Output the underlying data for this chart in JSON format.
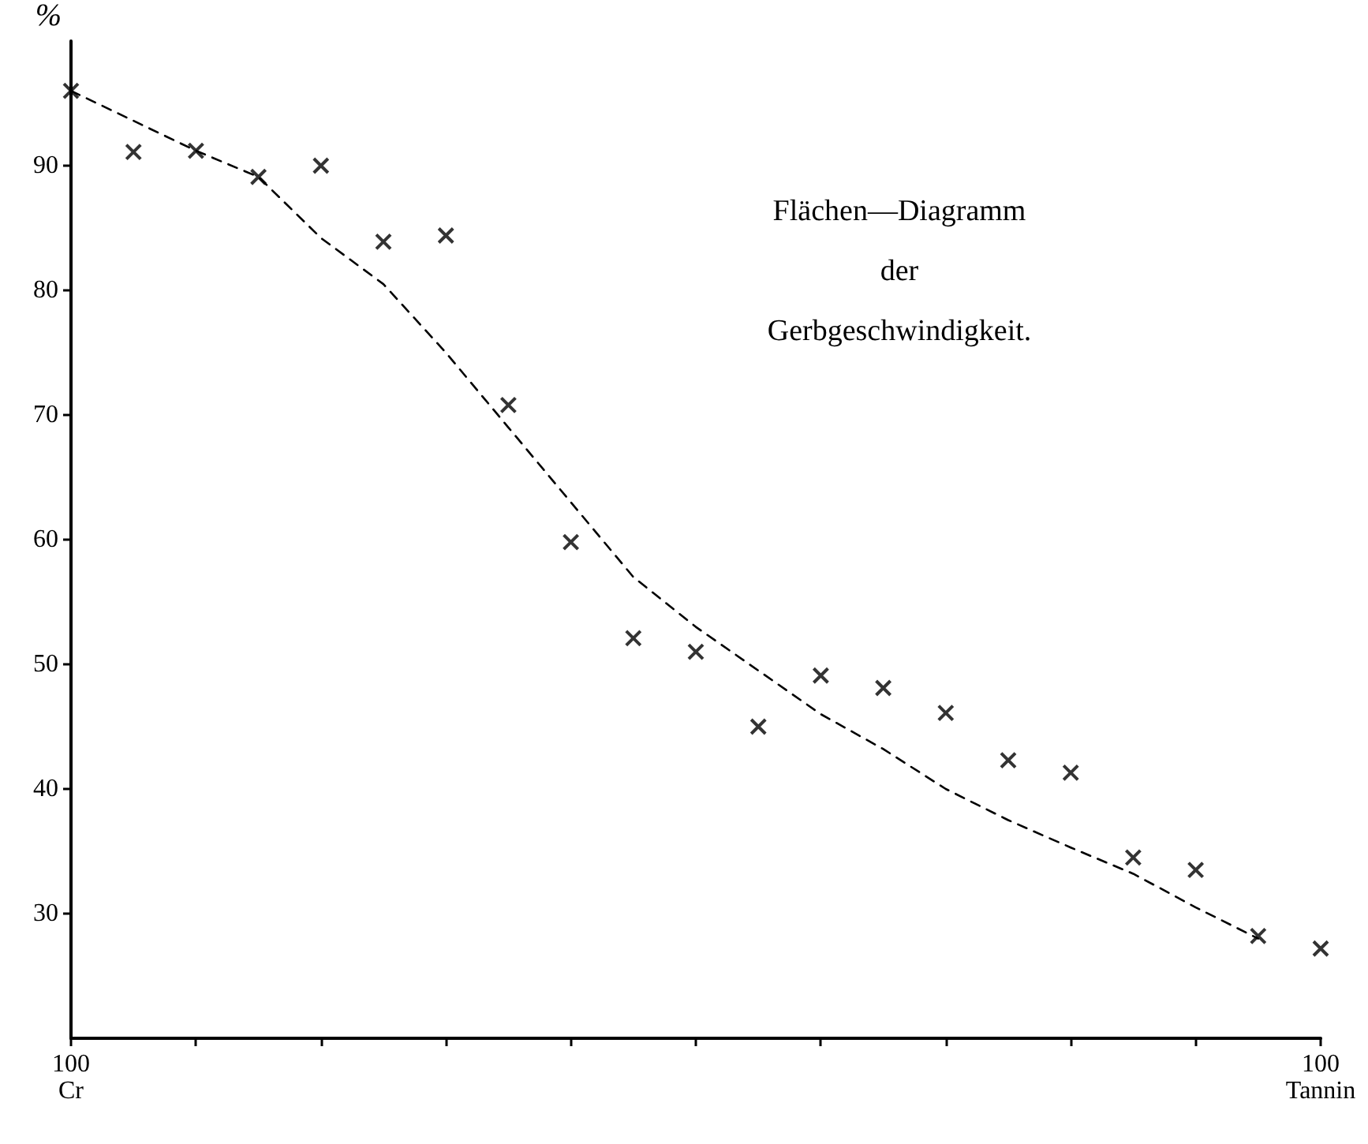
{
  "chart_data": {
    "type": "scatter",
    "title": "Flächen—Diagramm\nder\nGerbgeschwindigkeit.",
    "ylabel": "%",
    "categories": [
      "100\nCr",
      null,
      null,
      null,
      null,
      null,
      null,
      null,
      null,
      null,
      null,
      null,
      null,
      null,
      null,
      null,
      null,
      null,
      null,
      null,
      "100\nTannin"
    ],
    "ylim": [
      20,
      100
    ],
    "yticks": [
      30,
      40,
      50,
      60,
      70,
      80,
      90
    ],
    "grid": false,
    "series": [
      {
        "marker": "cross",
        "color": "#000000",
        "values": [
          96,
          91.1,
          91.2,
          89.1,
          90,
          83.9,
          84.4,
          70.8,
          59.8,
          52.1,
          51,
          45,
          49.1,
          48.1,
          46.1,
          42.3,
          41.3,
          34.5,
          33.5,
          28.2,
          27.2
        ]
      },
      {
        "type": "line",
        "marker": "none",
        "line_style": "dashed",
        "color": "#000000",
        "values": [
          96,
          93.6,
          91.2,
          89.1,
          84.2,
          80.5,
          75,
          69,
          63,
          57,
          53,
          49.5,
          46,
          43.2,
          40,
          37.5,
          35.3,
          33.2,
          30.5,
          28,
          null
        ]
      }
    ]
  }
}
